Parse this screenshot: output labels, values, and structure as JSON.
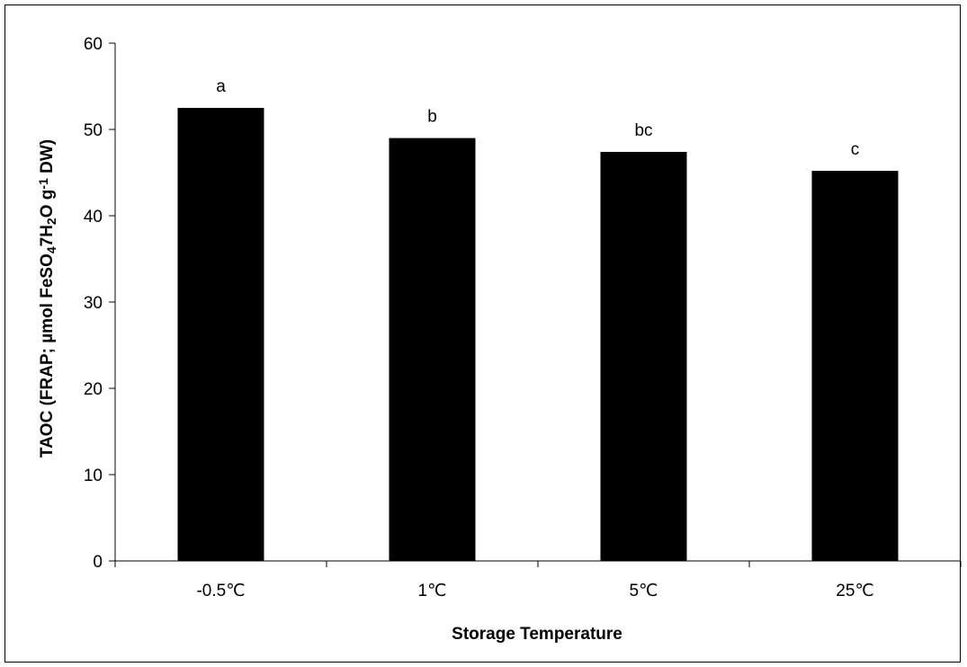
{
  "chart_data": {
    "type": "bar",
    "categories": [
      "-0.5℃",
      "1℃",
      "5℃",
      "25℃"
    ],
    "values": [
      52.5,
      49.0,
      47.4,
      45.2
    ],
    "bar_labels": [
      "a",
      "b",
      "bc",
      "c"
    ],
    "xlabel": "Storage Temperature",
    "ylabel_parts": {
      "p1": "TAOC (FRAP; µmol FeSO",
      "sub1": "4",
      "p2": "7H",
      "sub2": "2",
      "p3": "O g",
      "sup": "-1",
      "p4": " DW)"
    },
    "ylim": [
      0,
      60
    ],
    "yticks": [
      0,
      10,
      20,
      30,
      40,
      50,
      60
    ],
    "grid": false,
    "bar_color": "#000000"
  }
}
